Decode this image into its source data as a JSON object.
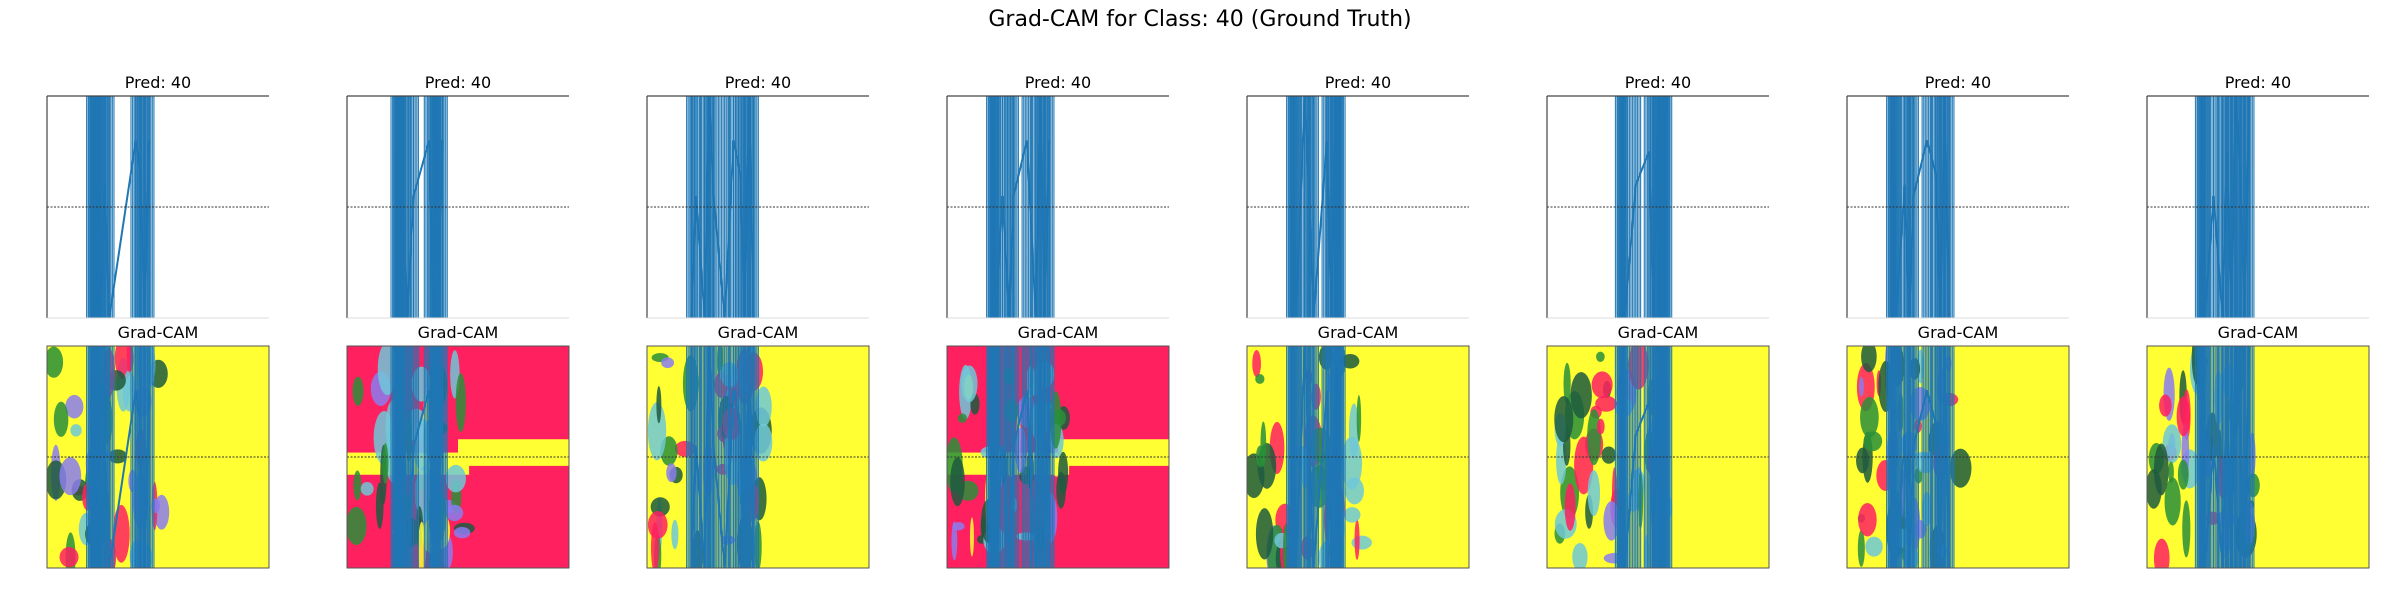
{
  "suptitle": "Grad-CAM for Class: 40 (Ground Truth)",
  "colors": {
    "signal": "#1f77b4",
    "hot": "#ff2060",
    "warm": "#ffff33",
    "mid": "#2a8f3a",
    "dark": "#1d5a40",
    "cool": "#8a7cf0",
    "cyan": "#6ec8d8",
    "neutral_line": "#333333"
  },
  "chart_data": [
    {
      "type": "line",
      "title": "Pred: 40",
      "xlabel": "",
      "ylabel": "",
      "ylim": [
        -1,
        1
      ],
      "x": [
        0.2,
        0.21,
        0.22,
        0.23,
        0.24,
        0.26,
        0.28,
        0.4,
        0.42,
        0.44,
        0.46
      ],
      "values": [
        -1,
        1,
        -1,
        0.2,
        -1,
        0.2,
        -1,
        0.6,
        0.3,
        -1,
        0.6
      ]
    },
    {
      "type": "line",
      "title": "Pred: 40",
      "xlabel": "",
      "ylabel": "",
      "ylim": [
        -1,
        1
      ],
      "x": [
        0.22,
        0.23,
        0.24,
        0.25,
        0.27,
        0.3,
        0.37,
        0.39,
        0.4,
        0.41,
        0.43
      ],
      "values": [
        -1,
        1,
        -1,
        0.1,
        -1,
        0.1,
        0.6,
        -1,
        1,
        -1,
        0.6
      ]
    },
    {
      "type": "line",
      "title": "Pred: 40",
      "xlabel": "",
      "ylabel": "",
      "ylim": [
        -1,
        1
      ],
      "x": [
        0.2,
        0.22,
        0.26,
        0.28,
        0.3,
        0.35,
        0.39,
        0.42,
        0.44,
        0.46,
        0.48
      ],
      "values": [
        -1,
        0.1,
        -1,
        1,
        0.1,
        -1,
        0.6,
        0.3,
        -1,
        1,
        -1
      ]
    },
    {
      "type": "line",
      "title": "Pred: 40",
      "xlabel": "",
      "ylabel": "",
      "ylim": [
        -1,
        1
      ],
      "x": [
        0.2,
        0.21,
        0.22,
        0.25,
        0.28,
        0.3,
        0.36,
        0.4,
        0.42,
        0.44,
        0.46
      ],
      "values": [
        -1,
        1,
        -1,
        0.1,
        -1,
        0.1,
        0.6,
        -1,
        1,
        -1,
        0.6
      ]
    },
    {
      "type": "line",
      "title": "Pred: 40",
      "xlabel": "",
      "ylabel": "",
      "ylim": [
        -1,
        1
      ],
      "x": [
        0.2,
        0.21,
        0.22,
        0.26,
        0.28,
        0.3,
        0.36,
        0.38,
        0.4,
        0.41,
        0.42
      ],
      "values": [
        -1,
        0.2,
        -1,
        1,
        0.1,
        -1,
        0.6,
        -1,
        1,
        -1,
        1
      ]
    },
    {
      "type": "line",
      "title": "Pred: 40",
      "xlabel": "",
      "ylabel": "",
      "ylim": [
        -1,
        1
      ],
      "x": [
        0.33,
        0.34,
        0.35,
        0.4,
        0.46,
        0.48,
        0.5,
        0.51,
        0.52,
        0.53,
        0.54
      ],
      "values": [
        -1,
        1,
        -1,
        0.2,
        0.5,
        -1,
        1,
        -1,
        1,
        -1,
        1
      ]
    },
    {
      "type": "line",
      "title": "Pred: 40",
      "xlabel": "",
      "ylabel": "",
      "ylim": [
        -1,
        1
      ],
      "x": [
        0.2,
        0.21,
        0.22,
        0.26,
        0.28,
        0.3,
        0.36,
        0.4,
        0.42,
        0.44,
        0.46
      ],
      "values": [
        -1,
        1,
        -1,
        0.2,
        -1,
        0.1,
        0.6,
        0.3,
        -1,
        1,
        -1
      ]
    },
    {
      "type": "line",
      "title": "Pred: 40",
      "xlabel": "",
      "ylabel": "",
      "ylim": [
        -1,
        1
      ],
      "x": [
        0.24,
        0.25,
        0.26,
        0.3,
        0.34,
        0.36,
        0.38,
        0.4,
        0.42,
        0.44,
        0.46
      ],
      "values": [
        -1,
        1,
        -1,
        0.1,
        -1,
        0.5,
        -1,
        1,
        0.3,
        -1,
        1
      ]
    }
  ],
  "gradcam_panels": [
    {
      "title": "Grad-CAM",
      "background": "warm"
    },
    {
      "title": "Grad-CAM",
      "background": "hot"
    },
    {
      "title": "Grad-CAM",
      "background": "warm"
    },
    {
      "title": "Grad-CAM",
      "background": "hot"
    },
    {
      "title": "Grad-CAM",
      "background": "warm"
    },
    {
      "title": "Grad-CAM",
      "background": "warm"
    },
    {
      "title": "Grad-CAM",
      "background": "warm"
    },
    {
      "title": "Grad-CAM",
      "background": "warm"
    }
  ]
}
